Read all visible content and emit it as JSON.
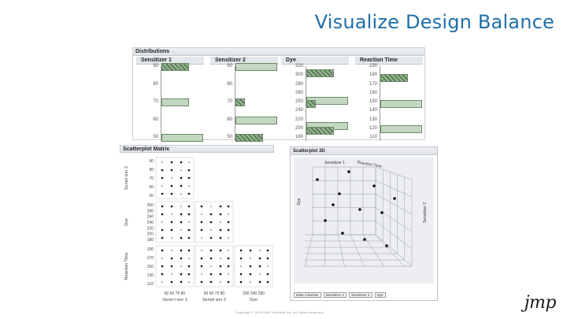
{
  "title": "Visualize Design Balance",
  "distributions": {
    "header": "Distributions",
    "columns": [
      {
        "label": "Sensitizer 1",
        "ticks": [
          "90",
          "80",
          "70",
          "60",
          "50"
        ],
        "bars": [
          {
            "at": 0,
            "frac": 0.35,
            "hatch": true
          },
          {
            "at": 2,
            "frac": 0.35,
            "hatch": false
          },
          {
            "at": 4,
            "frac": 0.53,
            "hatch": false
          }
        ]
      },
      {
        "label": "Sensitizer 2",
        "ticks": [
          "90",
          "80",
          "70",
          "60",
          "50"
        ],
        "bars": [
          {
            "at": 0,
            "frac": 0.53,
            "hatch": false
          },
          {
            "at": 2,
            "frac": 0.12,
            "hatch": true
          },
          {
            "at": 3,
            "frac": 0.53,
            "hatch": false
          },
          {
            "at": 4,
            "frac": 0.35,
            "hatch": true
          }
        ]
      },
      {
        "label": "Dye",
        "ticks": [
          "320",
          "300",
          "280",
          "260",
          "250",
          "240",
          "220",
          "200",
          "180"
        ],
        "bars": [
          {
            "at": 0.7,
            "frac": 0.35,
            "hatch": true
          },
          {
            "at": 3.8,
            "frac": 0.53,
            "hatch": false
          },
          {
            "at": 4.2,
            "frac": 0.12,
            "hatch": true
          },
          {
            "at": 6.7,
            "frac": 0.53,
            "hatch": false
          },
          {
            "at": 7.2,
            "frac": 0.35,
            "hatch": true
          }
        ]
      },
      {
        "label": "Reaction Time",
        "ticks": [
          "190",
          "180",
          "170",
          "160",
          "150",
          "140",
          "130",
          "120",
          "110"
        ],
        "bars": [
          {
            "at": 1.2,
            "frac": 0.35,
            "hatch": true
          },
          {
            "at": 4.2,
            "frac": 0.53,
            "hatch": false
          },
          {
            "at": 7.0,
            "frac": 0.25,
            "hatch": true
          },
          {
            "at": 7.05,
            "frac": 0.53,
            "hatch": false
          }
        ]
      }
    ]
  },
  "scatterplot_matrix": {
    "header": "Scatterplot Matrix",
    "row_labels": [
      "Sensit izer 2",
      "Dye",
      "Reaction Time"
    ],
    "y_ticks": {
      "sens2": [
        "90",
        "80",
        "70",
        "60",
        "50"
      ],
      "dye": [
        "300",
        "280",
        "260",
        "240",
        "220",
        "200",
        "180"
      ],
      "rt": [
        "190",
        "170",
        "150",
        "130",
        "110"
      ]
    },
    "x_ticks": {
      "sens1": "50 60 70 80",
      "sens2": "50 60 70 80",
      "dye": "200 240 280"
    },
    "x_labels": [
      "Sensi t izer 1",
      "Sensit izer 2",
      "Dye"
    ]
  },
  "scatterplot_3d": {
    "header": "Scatterplot 3D",
    "axis_labels": [
      "Sensitizer 1",
      "Reaction Time",
      "Dye",
      "Sensitizer 2"
    ],
    "controls": [
      "Data Columns",
      "Sensitizer 1",
      "Sensitizer 2",
      "Dye"
    ]
  },
  "footer": "Copyright © 2013 SAS Institute Inc. All rights reserved.",
  "logo": "jmp",
  "colors": {
    "title": "#1f6fa8",
    "bar_fill": "#c3d8c0",
    "bar_hatch": "#5b7d58"
  }
}
